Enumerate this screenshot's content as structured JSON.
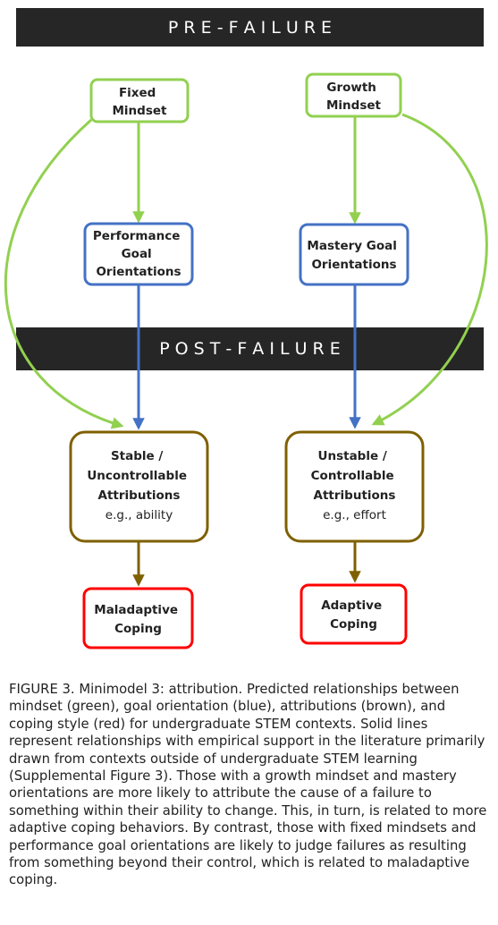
{
  "bands": {
    "pre_failure": "P R E - F A I L U R E",
    "post_failure": "P O S T - F A I L U R E"
  },
  "nodes": {
    "fixed_mindset": {
      "lines": [
        "Fixed",
        "Mindset"
      ],
      "color": "#92d050"
    },
    "growth_mindset": {
      "lines": [
        "Growth",
        "Mindset"
      ],
      "color": "#92d050"
    },
    "performance_goal": {
      "lines": [
        "Performance",
        "Goal",
        "Orientations"
      ],
      "color": "#4472c4"
    },
    "mastery_goal": {
      "lines": [
        "Mastery Goal",
        "Orientations"
      ],
      "color": "#4472c4"
    },
    "stable_attributions": {
      "lines": [
        "Stable /",
        "Uncontrollable",
        "Attributions"
      ],
      "example": "e.g., ability",
      "color": "#7f6000"
    },
    "unstable_attributions": {
      "lines": [
        "Unstable /",
        "Controllable",
        "Attributions"
      ],
      "example": "e.g., effort",
      "color": "#7f6000"
    },
    "maladaptive_coping": {
      "lines": [
        "Maladaptive",
        "Coping"
      ],
      "color": "#ff0000"
    },
    "adaptive_coping": {
      "lines": [
        "Adaptive",
        "Coping"
      ],
      "color": "#ff0000"
    }
  },
  "caption": {
    "label": "FIGURE 3.",
    "text": " Minimodel 3: attribution. Predicted relationships between mindset (green), goal orientation (blue), attributions (brown), and coping style (red) for undergraduate STEM contexts. Solid lines represent relationships with empirical support in the literature primarily drawn from contexts outside of undergraduate STEM learning (Supplemental Figure 3). Those with a growth mindset and mastery orientations are more likely to attribute the cause of a failure to something within their ability to change. This, in turn, is related to more adaptive coping behaviors. By contrast, those with fixed mindsets and performance goal orientations are likely to judge failures as resulting from something beyond their control, which is related to maladaptive coping."
  }
}
